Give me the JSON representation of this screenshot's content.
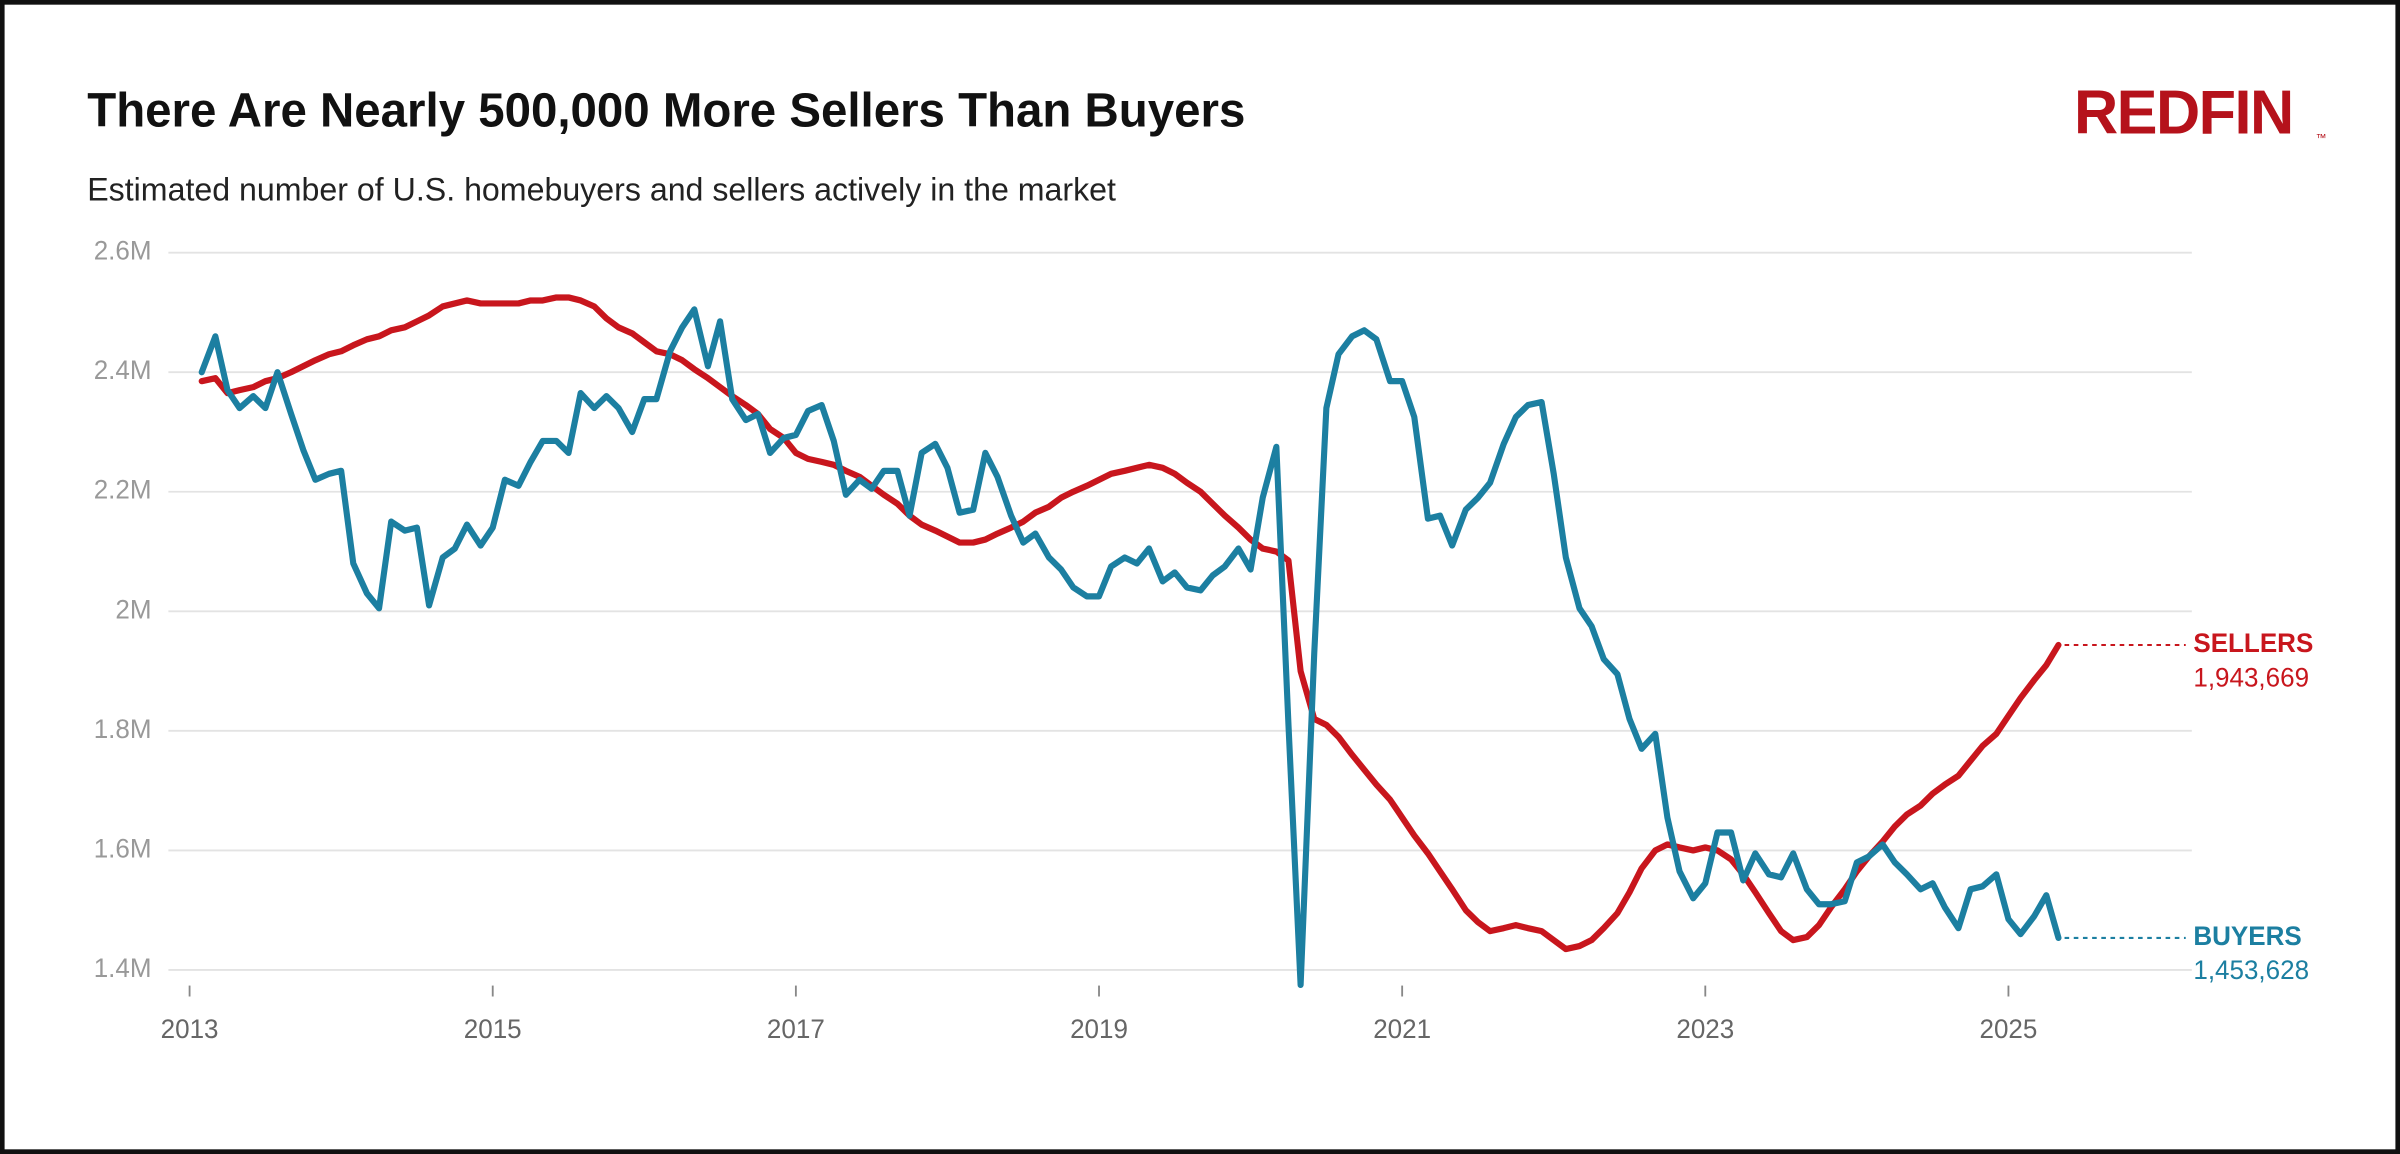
{
  "chart_data": {
    "type": "line",
    "title": "There Are Nearly 500,000 More Sellers Than Buyers",
    "subtitle": "Estimated number of U.S. homebuyers and sellers actively in the market",
    "logo": "REDFIN",
    "logo_mark": "™",
    "xlim": [
      2012.86,
      2026.21
    ],
    "xticks": [
      2013,
      2015,
      2017,
      2019,
      2021,
      2023,
      2025
    ],
    "ylim": [
      1400000,
      2600000
    ],
    "yticks": [
      {
        "value": 1400000,
        "label": "1.4M"
      },
      {
        "value": 1600000,
        "label": "1.6M"
      },
      {
        "value": 1800000,
        "label": "1.8M"
      },
      {
        "value": 2000000,
        "label": "2M"
      },
      {
        "value": 2200000,
        "label": "2.2M"
      },
      {
        "value": 2400000,
        "label": "2.4M"
      },
      {
        "value": 2600000,
        "label": "2.6M"
      }
    ],
    "grid": true,
    "x": [
      2013.08,
      2013.17,
      2013.25,
      2013.33,
      2013.42,
      2013.5,
      2013.58,
      2013.67,
      2013.75,
      2013.83,
      2013.92,
      2014,
      2014.08,
      2014.17,
      2014.25,
      2014.33,
      2014.42,
      2014.5,
      2014.58,
      2014.67,
      2014.75,
      2014.83,
      2014.92,
      2015,
      2015.08,
      2015.17,
      2015.25,
      2015.33,
      2015.42,
      2015.5,
      2015.58,
      2015.67,
      2015.75,
      2015.83,
      2015.92,
      2016,
      2016.08,
      2016.17,
      2016.25,
      2016.33,
      2016.42,
      2016.5,
      2016.58,
      2016.67,
      2016.75,
      2016.83,
      2016.92,
      2017,
      2017.08,
      2017.17,
      2017.25,
      2017.33,
      2017.42,
      2017.5,
      2017.58,
      2017.67,
      2017.75,
      2017.83,
      2017.92,
      2018,
      2018.08,
      2018.17,
      2018.25,
      2018.33,
      2018.42,
      2018.5,
      2018.58,
      2018.67,
      2018.75,
      2018.83,
      2018.92,
      2019,
      2019.08,
      2019.17,
      2019.25,
      2019.33,
      2019.42,
      2019.5,
      2019.58,
      2019.67,
      2019.75,
      2019.83,
      2019.92,
      2020,
      2020.08,
      2020.17,
      2020.25,
      2020.33,
      2020.42,
      2020.5,
      2020.58,
      2020.67,
      2020.75,
      2020.83,
      2020.92,
      2021,
      2021.08,
      2021.17,
      2021.25,
      2021.33,
      2021.42,
      2021.5,
      2021.58,
      2021.67,
      2021.75,
      2021.83,
      2021.92,
      2022,
      2022.08,
      2022.17,
      2022.25,
      2022.33,
      2022.42,
      2022.5,
      2022.58,
      2022.67,
      2022.75,
      2022.83,
      2022.92,
      2023,
      2023.08,
      2023.17,
      2023.25,
      2023.33,
      2023.42,
      2023.5,
      2023.58,
      2023.67,
      2023.75,
      2023.83,
      2023.92,
      2024,
      2024.08,
      2024.17,
      2024.25,
      2024.33,
      2024.42,
      2024.5,
      2024.58,
      2024.67,
      2024.75,
      2024.83,
      2024.92,
      2025,
      2025.08,
      2025.17,
      2025.25,
      2025.33
    ],
    "series": [
      {
        "name": "SELLERS",
        "color": "#c8161d",
        "last_value_label": "1,943,669",
        "values": [
          2385000,
          2390000,
          2365000,
          2370000,
          2375000,
          2385000,
          2390000,
          2400000,
          2410000,
          2420000,
          2430000,
          2435000,
          2445000,
          2455000,
          2460000,
          2470000,
          2475000,
          2485000,
          2495000,
          2510000,
          2515000,
          2520000,
          2515000,
          2515000,
          2515000,
          2515000,
          2520000,
          2520000,
          2525000,
          2525000,
          2520000,
          2510000,
          2490000,
          2475000,
          2465000,
          2450000,
          2435000,
          2430000,
          2420000,
          2405000,
          2390000,
          2375000,
          2360000,
          2345000,
          2330000,
          2305000,
          2290000,
          2265000,
          2255000,
          2250000,
          2245000,
          2235000,
          2225000,
          2210000,
          2195000,
          2180000,
          2160000,
          2145000,
          2135000,
          2125000,
          2115000,
          2115000,
          2120000,
          2130000,
          2140000,
          2150000,
          2165000,
          2175000,
          2190000,
          2200000,
          2210000,
          2220000,
          2230000,
          2235000,
          2240000,
          2245000,
          2240000,
          2230000,
          2215000,
          2200000,
          2180000,
          2160000,
          2140000,
          2120000,
          2105000,
          2100000,
          2085000,
          1900000,
          1820000,
          1810000,
          1790000,
          1760000,
          1735000,
          1710000,
          1685000,
          1655000,
          1625000,
          1595000,
          1565000,
          1535000,
          1500000,
          1480000,
          1465000,
          1470000,
          1475000,
          1470000,
          1465000,
          1450000,
          1435000,
          1440000,
          1450000,
          1470000,
          1495000,
          1530000,
          1570000,
          1600000,
          1610000,
          1605000,
          1600000,
          1605000,
          1600000,
          1585000,
          1560000,
          1530000,
          1495000,
          1465000,
          1450000,
          1455000,
          1475000,
          1505000,
          1535000,
          1565000,
          1590000,
          1615000,
          1640000,
          1660000,
          1675000,
          1695000,
          1710000,
          1725000,
          1750000,
          1775000,
          1795000,
          1825000,
          1855000,
          1885000,
          1910000,
          1943669
        ]
      },
      {
        "name": "BUYERS",
        "color": "#1c7fa1",
        "last_value_label": "1,453,628",
        "values": [
          2400000,
          2460000,
          2370000,
          2340000,
          2360000,
          2340000,
          2400000,
          2330000,
          2270000,
          2220000,
          2230000,
          2235000,
          2080000,
          2030000,
          2005000,
          2150000,
          2135000,
          2140000,
          2010000,
          2090000,
          2105000,
          2145000,
          2110000,
          2140000,
          2220000,
          2210000,
          2250000,
          2285000,
          2285000,
          2265000,
          2365000,
          2340000,
          2360000,
          2340000,
          2300000,
          2355000,
          2355000,
          2435000,
          2475000,
          2505000,
          2410000,
          2485000,
          2355000,
          2320000,
          2330000,
          2265000,
          2290000,
          2295000,
          2335000,
          2345000,
          2285000,
          2195000,
          2220000,
          2205000,
          2235000,
          2235000,
          2160000,
          2265000,
          2280000,
          2240000,
          2165000,
          2170000,
          2265000,
          2225000,
          2160000,
          2115000,
          2130000,
          2090000,
          2070000,
          2040000,
          2025000,
          2025000,
          2075000,
          2090000,
          2080000,
          2105000,
          2050000,
          2065000,
          2040000,
          2035000,
          2060000,
          2075000,
          2105000,
          2070000,
          2190000,
          2275000,
          1810000,
          1375000,
          1930000,
          2340000,
          2430000,
          2460000,
          2470000,
          2455000,
          2385000,
          2385000,
          2325000,
          2155000,
          2160000,
          2110000,
          2170000,
          2190000,
          2215000,
          2280000,
          2325000,
          2345000,
          2350000,
          2230000,
          2090000,
          2005000,
          1975000,
          1920000,
          1895000,
          1820000,
          1770000,
          1795000,
          1655000,
          1565000,
          1520000,
          1545000,
          1630000,
          1630000,
          1550000,
          1595000,
          1560000,
          1555000,
          1595000,
          1535000,
          1510000,
          1510000,
          1515000,
          1580000,
          1590000,
          1610000,
          1580000,
          1560000,
          1535000,
          1545000,
          1505000,
          1470000,
          1535000,
          1540000,
          1560000,
          1485000,
          1460000,
          1490000,
          1525000,
          1453628
        ]
      }
    ]
  }
}
